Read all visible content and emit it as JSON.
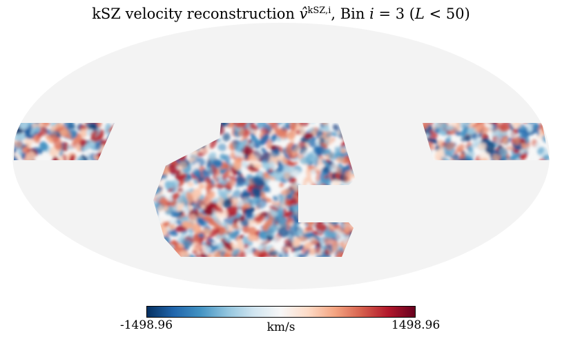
{
  "title": {
    "prefix": "kSZ velocity reconstruction ",
    "symbol": "v̂",
    "superscript": "kSZ,i",
    "middle": ", Bin ",
    "bin_var": "i",
    "bin_eq": " = 3 (",
    "ell": "L",
    "suffix": " < 50)"
  },
  "colorbar": {
    "min_label": "-1498.96",
    "max_label": "1498.96",
    "unit": "km/s",
    "min": -1498.96,
    "max": 1498.96,
    "cmap": "RdBu_r",
    "stops": [
      "#053061",
      "#2166ac",
      "#4393c3",
      "#92c5de",
      "#d1e5f0",
      "#f7f7f7",
      "#fddbc7",
      "#f4a582",
      "#d6604d",
      "#b2182b",
      "#67001f"
    ]
  },
  "map": {
    "projection": "mollweide",
    "background_color": "#f3f3f3"
  }
}
